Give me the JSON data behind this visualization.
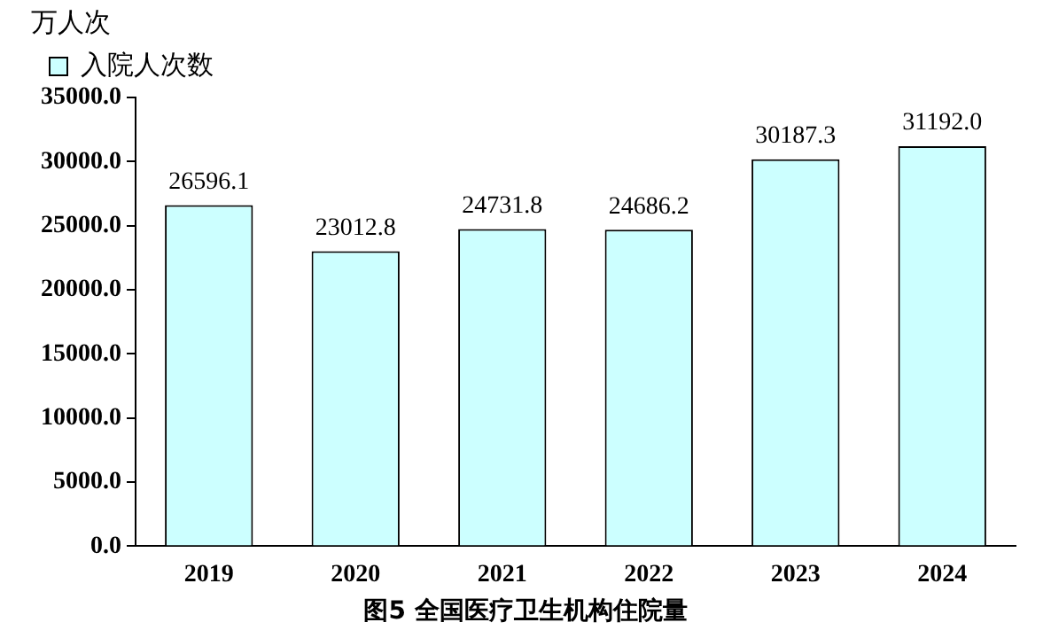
{
  "chart_data": {
    "type": "bar",
    "title": "图5 全国医疗卫生机构住院量",
    "ylabel": "万人次",
    "categories": [
      "2019",
      "2020",
      "2021",
      "2022",
      "2023",
      "2024"
    ],
    "series": [
      {
        "name": "入院人次数",
        "color": "#ccffff",
        "values": [
          26596.1,
          23012.8,
          24731.8,
          24686.2,
          30187.3,
          31192.0
        ],
        "value_labels": [
          "26596.1",
          "23012.8",
          "24731.8",
          "24686.2",
          "30187.3",
          "31192.0"
        ]
      }
    ],
    "ylim": [
      0,
      35000
    ],
    "yticks": [
      {
        "value": 0,
        "label": "0.0"
      },
      {
        "value": 5000,
        "label": "5000.0"
      },
      {
        "value": 10000,
        "label": "10000.0"
      },
      {
        "value": 15000,
        "label": "15000.0"
      },
      {
        "value": 20000,
        "label": "20000.0"
      },
      {
        "value": 25000,
        "label": "25000.0"
      },
      {
        "value": 30000,
        "label": "30000.0"
      },
      {
        "value": 35000,
        "label": "35000.0"
      }
    ],
    "grid": false,
    "legend": "top left"
  }
}
